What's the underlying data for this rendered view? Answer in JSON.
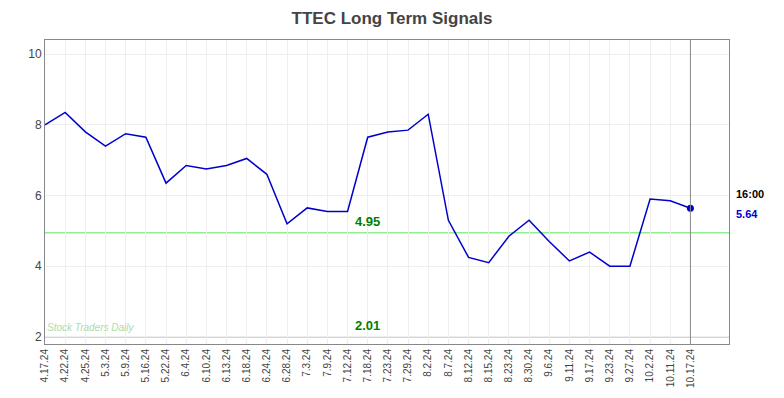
{
  "chart_data": {
    "type": "line",
    "title": "TTEC Long Term Signals",
    "categories": [
      "4.17.24",
      "4.22.24",
      "4.25.24",
      "5.3.24",
      "5.9.24",
      "5.16.24",
      "5.22.24",
      "6.4.24",
      "6.10.24",
      "6.13.24",
      "6.18.24",
      "6.24.24",
      "6.28.24",
      "7.3.24",
      "7.9.24",
      "7.12.24",
      "7.18.24",
      "7.23.24",
      "7.29.24",
      "8.2.24",
      "8.7.24",
      "8.12.24",
      "8.15.24",
      "8.23.24",
      "8.30.24",
      "9.6.24",
      "9.11.24",
      "9.17.24",
      "9.23.24",
      "9.27.24",
      "10.2.24",
      "10.11.24",
      "10.17.24"
    ],
    "values": [
      8.0,
      8.35,
      7.8,
      7.4,
      7.75,
      7.65,
      6.35,
      6.85,
      6.75,
      6.85,
      7.05,
      6.6,
      5.2,
      5.65,
      5.55,
      5.55,
      7.65,
      7.8,
      7.85,
      8.3,
      5.3,
      4.25,
      4.1,
      4.85,
      5.3,
      4.7,
      4.15,
      4.4,
      4.0,
      4.0,
      5.9,
      5.85,
      5.64
    ],
    "color": "#0000cc",
    "ylim": [
      1.8,
      10.4
    ],
    "yticks": [
      2,
      4,
      6,
      8,
      10
    ],
    "grid": true,
    "reference_lines": [
      {
        "value": 4.95,
        "label": "4.95",
        "color": "#90ee90",
        "label_color": "green"
      },
      {
        "value": 2.0,
        "label": "2.01",
        "color": "#90ee90",
        "label_color": "green"
      }
    ],
    "watermark": "Stock Traders Daily",
    "watermark_color": "#aaddaa",
    "end_label_time": "16:00",
    "end_label_value": "5.64"
  }
}
